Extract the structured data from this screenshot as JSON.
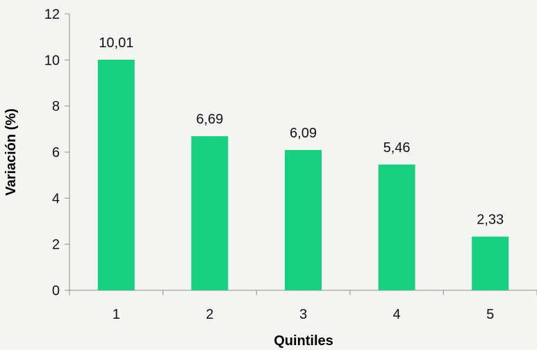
{
  "chart_data": {
    "type": "bar",
    "categories": [
      "1",
      "2",
      "3",
      "4",
      "5"
    ],
    "values": [
      10.01,
      6.69,
      6.09,
      5.46,
      2.33
    ],
    "value_labels": [
      "10,01",
      "6,69",
      "6,09",
      "5,46",
      "2,33"
    ],
    "xlabel": "Quintiles",
    "ylabel": "Variación (%)",
    "ylim": [
      0,
      12
    ],
    "yticks": [
      0,
      2,
      4,
      6,
      8,
      10,
      12
    ],
    "ytick_labels": [
      "0",
      "2",
      "4",
      "6",
      "8",
      "10",
      "12"
    ],
    "grid": false,
    "bar_color": "#17d17f"
  }
}
